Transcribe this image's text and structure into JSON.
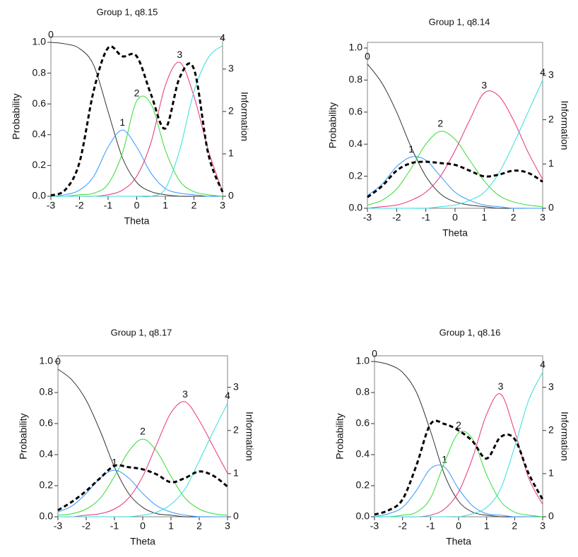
{
  "chart_data": [
    {
      "type": "line",
      "title": "Group 1, q8.15",
      "x_label": "Theta",
      "y_label": "Probability",
      "y2_label": "Information",
      "x": [
        -3,
        -2.5,
        -2,
        -1.5,
        -1,
        -0.5,
        0,
        0.5,
        1,
        1.5,
        2,
        2.5,
        3
      ],
      "xlim": [
        -3,
        3
      ],
      "xticks": [
        -3,
        -2,
        -1,
        0,
        1,
        2,
        3
      ],
      "ylim": [
        0,
        1
      ],
      "yticks": [
        {
          "value": 0,
          "label": "0.0"
        },
        0.2,
        0.4,
        0.6,
        0.8,
        {
          "value": 1,
          "label": "1.0"
        }
      ],
      "y2lim": [
        0,
        3.63
      ],
      "y2ticks": [
        0,
        1,
        2,
        3
      ],
      "series": [
        {
          "name": "0",
          "color": "#333333",
          "values": [
            1.0,
            0.99,
            0.96,
            0.85,
            0.55,
            0.25,
            0.09,
            0.03,
            0.01,
            0,
            0,
            0,
            0
          ]
        },
        {
          "name": "1",
          "color": "#3399ff",
          "values": [
            0,
            0.01,
            0.04,
            0.13,
            0.32,
            0.43,
            0.32,
            0.15,
            0.05,
            0.02,
            0.01,
            0,
            0
          ]
        },
        {
          "name": "2",
          "color": "#33dd33",
          "values": [
            0,
            0,
            0.01,
            0.02,
            0.08,
            0.28,
            0.62,
            0.6,
            0.3,
            0.1,
            0.03,
            0.01,
            0
          ]
        },
        {
          "name": "3",
          "color": "#e8307a",
          "values": [
            0,
            0,
            0,
            0,
            0.01,
            0.04,
            0.13,
            0.35,
            0.72,
            0.87,
            0.65,
            0.3,
            0.03
          ]
        },
        {
          "name": "4",
          "color": "#33dddd",
          "values": [
            0,
            0,
            0,
            0,
            0,
            0,
            0,
            0,
            0.05,
            0.3,
            0.68,
            0.9,
            0.98
          ]
        },
        {
          "color": "#000000",
          "axis": "y2",
          "dashed": true,
          "values": [
            0.02,
            0.15,
            0.8,
            2.5,
            3.5,
            3.3,
            3.3,
            2.4,
            1.6,
            2.8,
            3.0,
            1.0,
            0.1
          ]
        }
      ]
    },
    {
      "type": "line",
      "title": "Group 1, q8.14",
      "x_label": "Theta",
      "y_label": "Probability",
      "y2_label": "Information",
      "x": [
        -3,
        -2.5,
        -2,
        -1.5,
        -1,
        -0.5,
        0,
        0.5,
        1,
        1.5,
        2,
        2.5,
        3
      ],
      "xlim": [
        -3,
        3
      ],
      "xticks": [
        -3,
        -2,
        -1,
        0,
        1,
        2,
        3
      ],
      "ylim": [
        0,
        1
      ],
      "yticks": [
        {
          "value": 0,
          "label": "0.0"
        },
        0.2,
        0.4,
        0.6,
        0.8,
        {
          "value": 1,
          "label": "1.0"
        }
      ],
      "y2lim": [
        0,
        3.62
      ],
      "y2ticks": [
        0,
        1,
        2,
        3
      ],
      "series": [
        {
          "name": "0",
          "color": "#333333",
          "values": [
            0.9,
            0.78,
            0.6,
            0.38,
            0.2,
            0.09,
            0.04,
            0.02,
            0.01,
            0,
            0,
            0,
            0
          ]
        },
        {
          "name": "1",
          "color": "#3399ff",
          "values": [
            0.08,
            0.15,
            0.26,
            0.32,
            0.3,
            0.2,
            0.1,
            0.05,
            0.02,
            0.01,
            0,
            0,
            0
          ]
        },
        {
          "name": "2",
          "color": "#33dd33",
          "values": [
            0.02,
            0.05,
            0.12,
            0.25,
            0.4,
            0.48,
            0.43,
            0.3,
            0.17,
            0.08,
            0.04,
            0.02,
            0.01
          ]
        },
        {
          "name": "3",
          "color": "#e8307a",
          "values": [
            0,
            0.01,
            0.02,
            0.05,
            0.1,
            0.2,
            0.36,
            0.55,
            0.72,
            0.7,
            0.55,
            0.35,
            0.18
          ]
        },
        {
          "name": "4",
          "color": "#33dddd",
          "values": [
            0,
            0,
            0,
            0,
            0,
            0.01,
            0.02,
            0.05,
            0.1,
            0.22,
            0.4,
            0.6,
            0.8
          ]
        },
        {
          "color": "#000000",
          "axis": "y2",
          "dashed": true,
          "values": [
            0.25,
            0.5,
            0.85,
            1.02,
            1.05,
            1.02,
            0.98,
            0.85,
            0.72,
            0.76,
            0.85,
            0.8,
            0.6
          ]
        }
      ]
    },
    {
      "type": "line",
      "title": "Group 1, q8.17",
      "x_label": "Theta",
      "y_label": "Probability",
      "y2_label": "Information",
      "x": [
        -3,
        -2.5,
        -2,
        -1.5,
        -1,
        -0.5,
        0,
        0.5,
        1,
        1.5,
        2,
        2.5,
        3
      ],
      "xlim": [
        -3,
        3
      ],
      "xticks": [
        -3,
        -2,
        -1,
        0,
        1,
        2,
        3
      ],
      "ylim": [
        0,
        1
      ],
      "yticks": [
        {
          "value": 0,
          "label": "0.0"
        },
        0.2,
        0.4,
        0.6,
        0.8,
        {
          "value": 1,
          "label": "1.0"
        }
      ],
      "y2lim": [
        0,
        3.6
      ],
      "y2ticks": [
        0,
        1,
        2,
        3
      ],
      "series": [
        {
          "name": "0",
          "color": "#333333",
          "values": [
            0.95,
            0.88,
            0.75,
            0.55,
            0.32,
            0.15,
            0.06,
            0.02,
            0.01,
            0,
            0,
            0,
            0
          ]
        },
        {
          "name": "1",
          "color": "#3399ff",
          "values": [
            0.03,
            0.07,
            0.15,
            0.25,
            0.3,
            0.25,
            0.15,
            0.07,
            0.03,
            0.01,
            0,
            0,
            0
          ]
        },
        {
          "name": "2",
          "color": "#33dd33",
          "values": [
            0.01,
            0.02,
            0.05,
            0.12,
            0.26,
            0.42,
            0.5,
            0.42,
            0.26,
            0.12,
            0.05,
            0.02,
            0.01
          ]
        },
        {
          "name": "3",
          "color": "#e8307a",
          "values": [
            0,
            0,
            0.01,
            0.02,
            0.05,
            0.12,
            0.26,
            0.47,
            0.67,
            0.74,
            0.62,
            0.45,
            0.28
          ]
        },
        {
          "name": "4",
          "color": "#33dddd",
          "values": [
            0,
            0,
            0,
            0,
            0,
            0,
            0.01,
            0.03,
            0.08,
            0.18,
            0.36,
            0.55,
            0.73
          ]
        },
        {
          "color": "#000000",
          "axis": "y2",
          "dashed": true,
          "values": [
            0.15,
            0.35,
            0.6,
            0.9,
            1.18,
            1.15,
            1.1,
            0.98,
            0.8,
            0.9,
            1.05,
            0.95,
            0.7
          ]
        }
      ]
    },
    {
      "type": "line",
      "title": "Group 1, q8.16",
      "x_label": "Theta",
      "y_label": "Probability",
      "y2_label": "Information",
      "x": [
        -3,
        -2.5,
        -2,
        -1.5,
        -1,
        -0.5,
        0,
        0.5,
        1,
        1.5,
        2,
        2.5,
        3
      ],
      "xlim": [
        -3,
        3
      ],
      "xticks": [
        -3,
        -2,
        -1,
        0,
        1,
        2,
        3
      ],
      "ylim": [
        0,
        1
      ],
      "yticks": [
        {
          "value": 0,
          "label": "0.0"
        },
        0.2,
        0.4,
        0.6,
        0.8,
        {
          "value": 1,
          "label": "1.0"
        }
      ],
      "y2lim": [
        0,
        3.6
      ],
      "y2ticks": [
        0,
        1,
        2,
        3
      ],
      "series": [
        {
          "name": "0",
          "color": "#333333",
          "values": [
            1.0,
            0.98,
            0.93,
            0.8,
            0.55,
            0.27,
            0.1,
            0.03,
            0.01,
            0,
            0,
            0,
            0
          ]
        },
        {
          "name": "1",
          "color": "#3399ff",
          "values": [
            0,
            0.02,
            0.06,
            0.17,
            0.31,
            0.32,
            0.18,
            0.07,
            0.02,
            0.01,
            0,
            0,
            0
          ]
        },
        {
          "name": "2",
          "color": "#33dd33",
          "values": [
            0,
            0,
            0.01,
            0.03,
            0.12,
            0.35,
            0.54,
            0.5,
            0.27,
            0.1,
            0.03,
            0.01,
            0
          ]
        },
        {
          "name": "3",
          "color": "#e8307a",
          "values": [
            0,
            0,
            0,
            0,
            0.01,
            0.05,
            0.16,
            0.38,
            0.66,
            0.79,
            0.55,
            0.25,
            0.08
          ]
        },
        {
          "name": "4",
          "color": "#33dddd",
          "values": [
            0,
            0,
            0,
            0,
            0,
            0,
            0,
            0.02,
            0.06,
            0.18,
            0.45,
            0.75,
            0.93
          ]
        },
        {
          "color": "#000000",
          "axis": "y2",
          "dashed": true,
          "values": [
            0.05,
            0.15,
            0.4,
            1.2,
            2.15,
            2.15,
            2.0,
            1.75,
            1.35,
            1.85,
            1.8,
            1.0,
            0.4
          ]
        }
      ]
    }
  ]
}
